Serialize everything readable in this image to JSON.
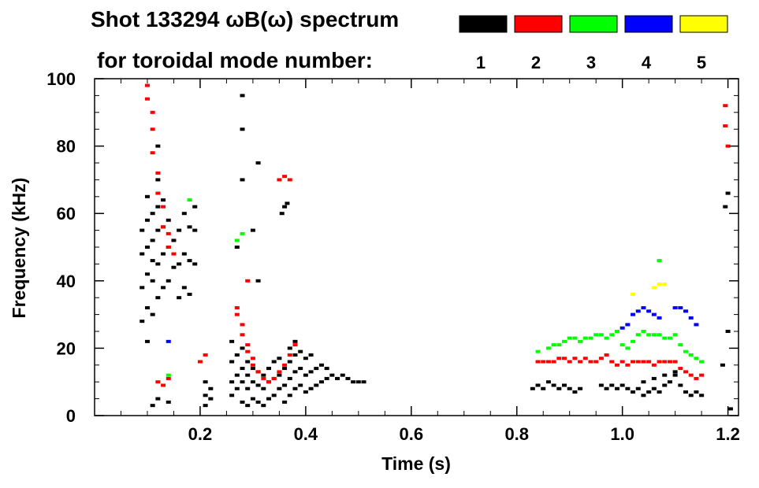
{
  "chart_data": {
    "type": "scatter",
    "title": "Shot 133294 ωB(ω) spectrum",
    "subtitle": "for toroidal mode number:",
    "xlabel": "Time (s)",
    "ylabel": "Frequency (kHz)",
    "xlim": [
      0.0,
      1.22
    ],
    "ylim": [
      0,
      100
    ],
    "x_ticks": [
      0.2,
      0.4,
      0.6,
      0.8,
      1.0,
      1.2
    ],
    "x_tick_labels": [
      "0.2",
      "0.4",
      "0.6",
      "0.8",
      "1.0",
      "1.2"
    ],
    "y_ticks": [
      0,
      20,
      40,
      60,
      80,
      100
    ],
    "y_tick_labels": [
      "0",
      "20",
      "40",
      "60",
      "80",
      "100"
    ],
    "grid": false,
    "legend_placement": "top-right",
    "legend": [
      {
        "label": "1",
        "color": "#000000"
      },
      {
        "label": "2",
        "color": "#ff0000"
      },
      {
        "label": "3",
        "color": "#00ff00"
      },
      {
        "label": "4",
        "color": "#0000ff"
      },
      {
        "label": "5",
        "color": "#ffff00"
      }
    ],
    "series": [
      {
        "mode": "1",
        "color": "#000000",
        "points": [
          [
            0.09,
            28
          ],
          [
            0.09,
            38
          ],
          [
            0.09,
            48
          ],
          [
            0.09,
            55
          ],
          [
            0.1,
            22
          ],
          [
            0.1,
            32
          ],
          [
            0.1,
            42
          ],
          [
            0.1,
            50
          ],
          [
            0.1,
            58
          ],
          [
            0.1,
            65
          ],
          [
            0.11,
            30
          ],
          [
            0.11,
            40
          ],
          [
            0.11,
            46
          ],
          [
            0.11,
            52
          ],
          [
            0.11,
            60
          ],
          [
            0.12,
            35
          ],
          [
            0.12,
            45
          ],
          [
            0.12,
            55
          ],
          [
            0.12,
            62
          ],
          [
            0.12,
            70
          ],
          [
            0.12,
            80
          ],
          [
            0.13,
            38
          ],
          [
            0.13,
            48
          ],
          [
            0.13,
            56
          ],
          [
            0.13,
            64
          ],
          [
            0.14,
            40
          ],
          [
            0.14,
            50
          ],
          [
            0.14,
            58
          ],
          [
            0.15,
            44
          ],
          [
            0.15,
            52
          ],
          [
            0.16,
            35
          ],
          [
            0.16,
            45
          ],
          [
            0.16,
            55
          ],
          [
            0.17,
            38
          ],
          [
            0.17,
            48
          ],
          [
            0.17,
            60
          ],
          [
            0.18,
            36
          ],
          [
            0.18,
            46
          ],
          [
            0.18,
            56
          ],
          [
            0.19,
            45
          ],
          [
            0.19,
            55
          ],
          [
            0.19,
            62
          ],
          [
            0.11,
            3
          ],
          [
            0.12,
            5
          ],
          [
            0.14,
            4
          ],
          [
            0.21,
            3
          ],
          [
            0.21,
            6
          ],
          [
            0.21,
            10
          ],
          [
            0.22,
            5
          ],
          [
            0.22,
            8
          ],
          [
            0.26,
            6
          ],
          [
            0.26,
            10
          ],
          [
            0.26,
            16
          ],
          [
            0.26,
            22
          ],
          [
            0.27,
            8
          ],
          [
            0.27,
            12
          ],
          [
            0.27,
            18
          ],
          [
            0.28,
            4
          ],
          [
            0.28,
            10
          ],
          [
            0.28,
            14
          ],
          [
            0.28,
            20
          ],
          [
            0.29,
            3
          ],
          [
            0.29,
            8
          ],
          [
            0.29,
            12
          ],
          [
            0.29,
            16
          ],
          [
            0.3,
            5
          ],
          [
            0.3,
            10
          ],
          [
            0.3,
            14
          ],
          [
            0.31,
            4
          ],
          [
            0.31,
            9
          ],
          [
            0.31,
            13
          ],
          [
            0.32,
            3
          ],
          [
            0.32,
            8
          ],
          [
            0.32,
            12
          ],
          [
            0.33,
            5
          ],
          [
            0.33,
            10
          ],
          [
            0.33,
            14
          ],
          [
            0.34,
            6
          ],
          [
            0.34,
            11
          ],
          [
            0.34,
            16
          ],
          [
            0.35,
            8
          ],
          [
            0.35,
            12
          ],
          [
            0.35,
            17
          ],
          [
            0.36,
            4
          ],
          [
            0.36,
            9
          ],
          [
            0.36,
            14
          ],
          [
            0.37,
            6
          ],
          [
            0.37,
            11
          ],
          [
            0.37,
            16
          ],
          [
            0.37,
            20
          ],
          [
            0.38,
            8
          ],
          [
            0.38,
            13
          ],
          [
            0.38,
            18
          ],
          [
            0.38,
            22
          ],
          [
            0.39,
            9
          ],
          [
            0.39,
            14
          ],
          [
            0.39,
            19
          ],
          [
            0.4,
            7
          ],
          [
            0.4,
            12
          ],
          [
            0.4,
            17
          ],
          [
            0.41,
            8
          ],
          [
            0.41,
            13
          ],
          [
            0.41,
            18
          ],
          [
            0.42,
            9
          ],
          [
            0.42,
            14
          ],
          [
            0.43,
            10
          ],
          [
            0.43,
            15
          ],
          [
            0.44,
            11
          ],
          [
            0.44,
            14
          ],
          [
            0.45,
            12
          ],
          [
            0.46,
            11
          ],
          [
            0.47,
            12
          ],
          [
            0.48,
            11
          ],
          [
            0.49,
            10
          ],
          [
            0.5,
            10
          ],
          [
            0.51,
            10
          ],
          [
            0.27,
            50
          ],
          [
            0.28,
            70
          ],
          [
            0.28,
            85
          ],
          [
            0.28,
            95
          ],
          [
            0.3,
            55
          ],
          [
            0.31,
            40
          ],
          [
            0.31,
            75
          ],
          [
            0.355,
            60
          ],
          [
            0.36,
            62
          ],
          [
            0.365,
            63
          ],
          [
            0.83,
            8
          ],
          [
            0.84,
            9
          ],
          [
            0.85,
            8
          ],
          [
            0.86,
            10
          ],
          [
            0.87,
            9
          ],
          [
            0.88,
            8
          ],
          [
            0.89,
            9
          ],
          [
            0.9,
            8
          ],
          [
            0.91,
            7
          ],
          [
            0.92,
            8
          ],
          [
            0.96,
            9
          ],
          [
            0.97,
            8
          ],
          [
            0.98,
            9
          ],
          [
            0.99,
            8
          ],
          [
            1.0,
            9
          ],
          [
            1.01,
            8
          ],
          [
            1.02,
            7
          ],
          [
            1.03,
            8
          ],
          [
            1.04,
            6
          ],
          [
            1.05,
            7
          ],
          [
            1.06,
            8
          ],
          [
            1.07,
            7
          ],
          [
            1.08,
            9
          ],
          [
            1.09,
            10
          ],
          [
            1.1,
            12
          ],
          [
            1.11,
            9
          ],
          [
            1.12,
            7
          ],
          [
            1.13,
            6
          ],
          [
            1.14,
            7
          ],
          [
            1.15,
            6
          ],
          [
            1.04,
            10
          ],
          [
            1.06,
            11
          ],
          [
            1.08,
            12
          ],
          [
            1.1,
            13
          ],
          [
            1.195,
            62
          ],
          [
            1.2,
            66
          ],
          [
            1.19,
            15
          ],
          [
            1.2,
            25
          ],
          [
            1.205,
            2
          ]
        ]
      },
      {
        "mode": "2",
        "color": "#ff0000",
        "points": [
          [
            0.1,
            98
          ],
          [
            0.1,
            94
          ],
          [
            0.11,
            90
          ],
          [
            0.11,
            85
          ],
          [
            0.11,
            78
          ],
          [
            0.12,
            72
          ],
          [
            0.12,
            66
          ],
          [
            0.13,
            62
          ],
          [
            0.13,
            56
          ],
          [
            0.14,
            54
          ],
          [
            0.14,
            50
          ],
          [
            0.15,
            48
          ],
          [
            0.12,
            10
          ],
          [
            0.13,
            9
          ],
          [
            0.14,
            11
          ],
          [
            0.2,
            16
          ],
          [
            0.21,
            18
          ],
          [
            0.27,
            30
          ],
          [
            0.27,
            32
          ],
          [
            0.28,
            27
          ],
          [
            0.28,
            24
          ],
          [
            0.29,
            21
          ],
          [
            0.29,
            19
          ],
          [
            0.3,
            17
          ],
          [
            0.3,
            15
          ],
          [
            0.31,
            13
          ],
          [
            0.32,
            11
          ],
          [
            0.33,
            10
          ],
          [
            0.34,
            11
          ],
          [
            0.35,
            13
          ],
          [
            0.36,
            15
          ],
          [
            0.37,
            18
          ],
          [
            0.38,
            21
          ],
          [
            0.29,
            40
          ],
          [
            0.35,
            70
          ],
          [
            0.36,
            71
          ],
          [
            0.37,
            70
          ],
          [
            0.84,
            16
          ],
          [
            0.85,
            16
          ],
          [
            0.86,
            16
          ],
          [
            0.87,
            16
          ],
          [
            0.88,
            17
          ],
          [
            0.89,
            17
          ],
          [
            0.9,
            16
          ],
          [
            0.91,
            17
          ],
          [
            0.92,
            16
          ],
          [
            0.93,
            17
          ],
          [
            0.94,
            16
          ],
          [
            0.95,
            16
          ],
          [
            0.96,
            17
          ],
          [
            0.97,
            18
          ],
          [
            0.98,
            16
          ],
          [
            0.99,
            15
          ],
          [
            1.0,
            16
          ],
          [
            1.01,
            15
          ],
          [
            1.02,
            16
          ],
          [
            1.03,
            16
          ],
          [
            1.04,
            16
          ],
          [
            1.05,
            16
          ],
          [
            1.06,
            15
          ],
          [
            1.07,
            16
          ],
          [
            1.08,
            16
          ],
          [
            1.09,
            16
          ],
          [
            1.1,
            16
          ],
          [
            1.11,
            14
          ],
          [
            1.12,
            13
          ],
          [
            1.13,
            12
          ],
          [
            1.14,
            11
          ],
          [
            1.15,
            12
          ],
          [
            1.195,
            86
          ],
          [
            1.2,
            80
          ],
          [
            1.195,
            92
          ]
        ]
      },
      {
        "mode": "3",
        "color": "#00ff00",
        "points": [
          [
            0.18,
            64
          ],
          [
            0.27,
            52
          ],
          [
            0.28,
            54
          ],
          [
            0.14,
            12
          ],
          [
            0.84,
            19
          ],
          [
            0.86,
            20
          ],
          [
            0.87,
            21
          ],
          [
            0.88,
            21
          ],
          [
            0.89,
            22
          ],
          [
            0.9,
            23
          ],
          [
            0.91,
            23
          ],
          [
            0.92,
            22
          ],
          [
            0.93,
            23
          ],
          [
            0.94,
            23
          ],
          [
            0.95,
            24
          ],
          [
            0.96,
            24
          ],
          [
            0.97,
            23
          ],
          [
            0.98,
            24
          ],
          [
            0.99,
            25
          ],
          [
            1.0,
            21
          ],
          [
            1.01,
            20
          ],
          [
            1.02,
            22
          ],
          [
            1.03,
            24
          ],
          [
            1.04,
            25
          ],
          [
            1.05,
            24
          ],
          [
            1.06,
            24
          ],
          [
            1.07,
            24
          ],
          [
            1.08,
            23
          ],
          [
            1.09,
            23
          ],
          [
            1.1,
            24
          ],
          [
            1.11,
            21
          ],
          [
            1.12,
            19
          ],
          [
            1.13,
            18
          ],
          [
            1.14,
            17
          ],
          [
            1.15,
            16
          ],
          [
            1.07,
            46
          ]
        ]
      },
      {
        "mode": "4",
        "color": "#0000ff",
        "points": [
          [
            1.0,
            26
          ],
          [
            1.01,
            27
          ],
          [
            1.02,
            30
          ],
          [
            1.03,
            31
          ],
          [
            1.04,
            32
          ],
          [
            1.05,
            31
          ],
          [
            1.06,
            30
          ],
          [
            1.07,
            29
          ],
          [
            1.1,
            32
          ],
          [
            1.11,
            32
          ],
          [
            1.12,
            31
          ],
          [
            1.13,
            29
          ],
          [
            1.14,
            27
          ],
          [
            0.14,
            22
          ]
        ]
      },
      {
        "mode": "5",
        "color": "#ffff00",
        "points": [
          [
            1.06,
            38
          ],
          [
            1.07,
            39
          ],
          [
            1.08,
            39
          ],
          [
            1.02,
            36
          ]
        ]
      }
    ]
  }
}
